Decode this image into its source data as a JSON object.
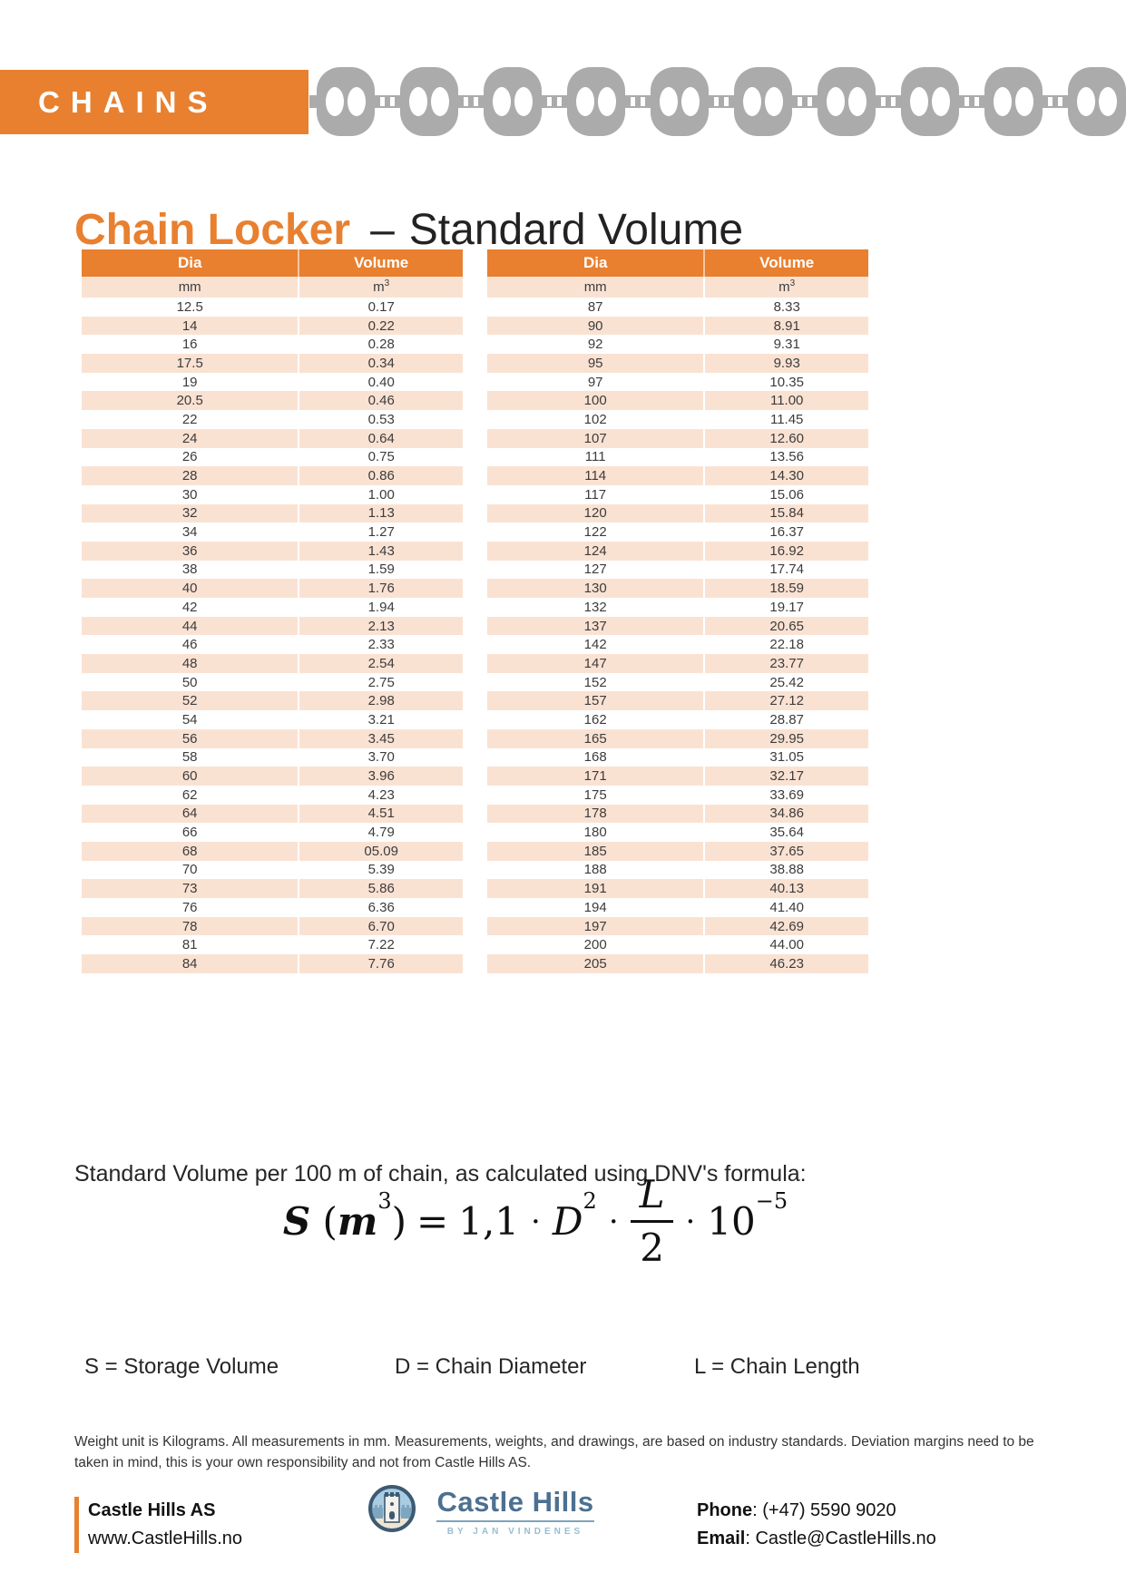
{
  "banner": {
    "label": "CHAINS"
  },
  "title": {
    "highlight": "Chain Locker",
    "separator": "–",
    "rest": "Standard Volume"
  },
  "table": {
    "headers": {
      "dia": "Dia",
      "volume": "Volume"
    },
    "units": {
      "dia": "mm",
      "volume_base": "m",
      "volume_exponent": "3"
    },
    "left_rows": [
      [
        "12.5",
        "0.17"
      ],
      [
        "14",
        "0.22"
      ],
      [
        "16",
        "0.28"
      ],
      [
        "17.5",
        "0.34"
      ],
      [
        "19",
        "0.40"
      ],
      [
        "20.5",
        "0.46"
      ],
      [
        "22",
        "0.53"
      ],
      [
        "24",
        "0.64"
      ],
      [
        "26",
        "0.75"
      ],
      [
        "28",
        "0.86"
      ],
      [
        "30",
        "1.00"
      ],
      [
        "32",
        "1.13"
      ],
      [
        "34",
        "1.27"
      ],
      [
        "36",
        "1.43"
      ],
      [
        "38",
        "1.59"
      ],
      [
        "40",
        "1.76"
      ],
      [
        "42",
        "1.94"
      ],
      [
        "44",
        "2.13"
      ],
      [
        "46",
        "2.33"
      ],
      [
        "48",
        "2.54"
      ],
      [
        "50",
        "2.75"
      ],
      [
        "52",
        "2.98"
      ],
      [
        "54",
        "3.21"
      ],
      [
        "56",
        "3.45"
      ],
      [
        "58",
        "3.70"
      ],
      [
        "60",
        "3.96"
      ],
      [
        "62",
        "4.23"
      ],
      [
        "64",
        "4.51"
      ],
      [
        "66",
        "4.79"
      ],
      [
        "68",
        "05.09"
      ],
      [
        "70",
        "5.39"
      ],
      [
        "73",
        "5.86"
      ],
      [
        "76",
        "6.36"
      ],
      [
        "78",
        "6.70"
      ],
      [
        "81",
        "7.22"
      ],
      [
        "84",
        "7.76"
      ]
    ],
    "right_rows": [
      [
        "87",
        "8.33"
      ],
      [
        "90",
        "8.91"
      ],
      [
        "92",
        "9.31"
      ],
      [
        "95",
        "9.93"
      ],
      [
        "97",
        "10.35"
      ],
      [
        "100",
        "11.00"
      ],
      [
        "102",
        "11.45"
      ],
      [
        "107",
        "12.60"
      ],
      [
        "111",
        "13.56"
      ],
      [
        "114",
        "14.30"
      ],
      [
        "117",
        "15.06"
      ],
      [
        "120",
        "15.84"
      ],
      [
        "122",
        "16.37"
      ],
      [
        "124",
        "16.92"
      ],
      [
        "127",
        "17.74"
      ],
      [
        "130",
        "18.59"
      ],
      [
        "132",
        "19.17"
      ],
      [
        "137",
        "20.65"
      ],
      [
        "142",
        "22.18"
      ],
      [
        "147",
        "23.77"
      ],
      [
        "152",
        "25.42"
      ],
      [
        "157",
        "27.12"
      ],
      [
        "162",
        "28.87"
      ],
      [
        "165",
        "29.95"
      ],
      [
        "168",
        "31.05"
      ],
      [
        "171",
        "32.17"
      ],
      [
        "175",
        "33.69"
      ],
      [
        "178",
        "34.86"
      ],
      [
        "180",
        "35.64"
      ],
      [
        "185",
        "37.65"
      ],
      [
        "188",
        "38.88"
      ],
      [
        "191",
        "40.13"
      ],
      [
        "194",
        "41.40"
      ],
      [
        "197",
        "42.69"
      ],
      [
        "200",
        "44.00"
      ],
      [
        "205",
        "46.23"
      ]
    ]
  },
  "formula": {
    "intro": "Standard Volume per 100 m of chain, as calculated using DNV's formula:",
    "lhs_var": "S",
    "lhs_open": "(",
    "lhs_unit": "m",
    "lhs_unit_exponent": "3",
    "lhs_close": ")",
    "equals": "=",
    "coefficient": "1,1",
    "dot": "·",
    "var_d": "D",
    "d_exponent": "2",
    "frac_numerator": "L",
    "frac_denominator": "2",
    "pow_base": "10",
    "pow_exponent": "−5"
  },
  "legend": {
    "s": "S = Storage Volume",
    "d": "D = Chain Diameter",
    "l": "L = Chain Length"
  },
  "disclaimer": "Weight unit is Kilograms. All measurements in mm. Measurements, weights, and drawings, are based on industry standards. Deviation margins need to be taken in mind, this is your own responsibility and not from Castle Hills AS.",
  "footer": {
    "company": "Castle Hills AS",
    "website": "www.CastleHills.no",
    "logo": {
      "name": "Castle Hills",
      "tagline": "BY JAN VINDENES"
    },
    "separator": ": ",
    "phone_label": "Phone",
    "phone_value": "(+47) 5590 9020",
    "email_label": "Email",
    "email_value": "Castle@CastleHills.no"
  },
  "colors": {
    "accent_orange": "#E8802F",
    "row_peach": "#FAE2D3",
    "chain_gray": "#ABABAB",
    "logo_blue": "#4C7090",
    "logo_light_blue": "#A9CCE2"
  }
}
